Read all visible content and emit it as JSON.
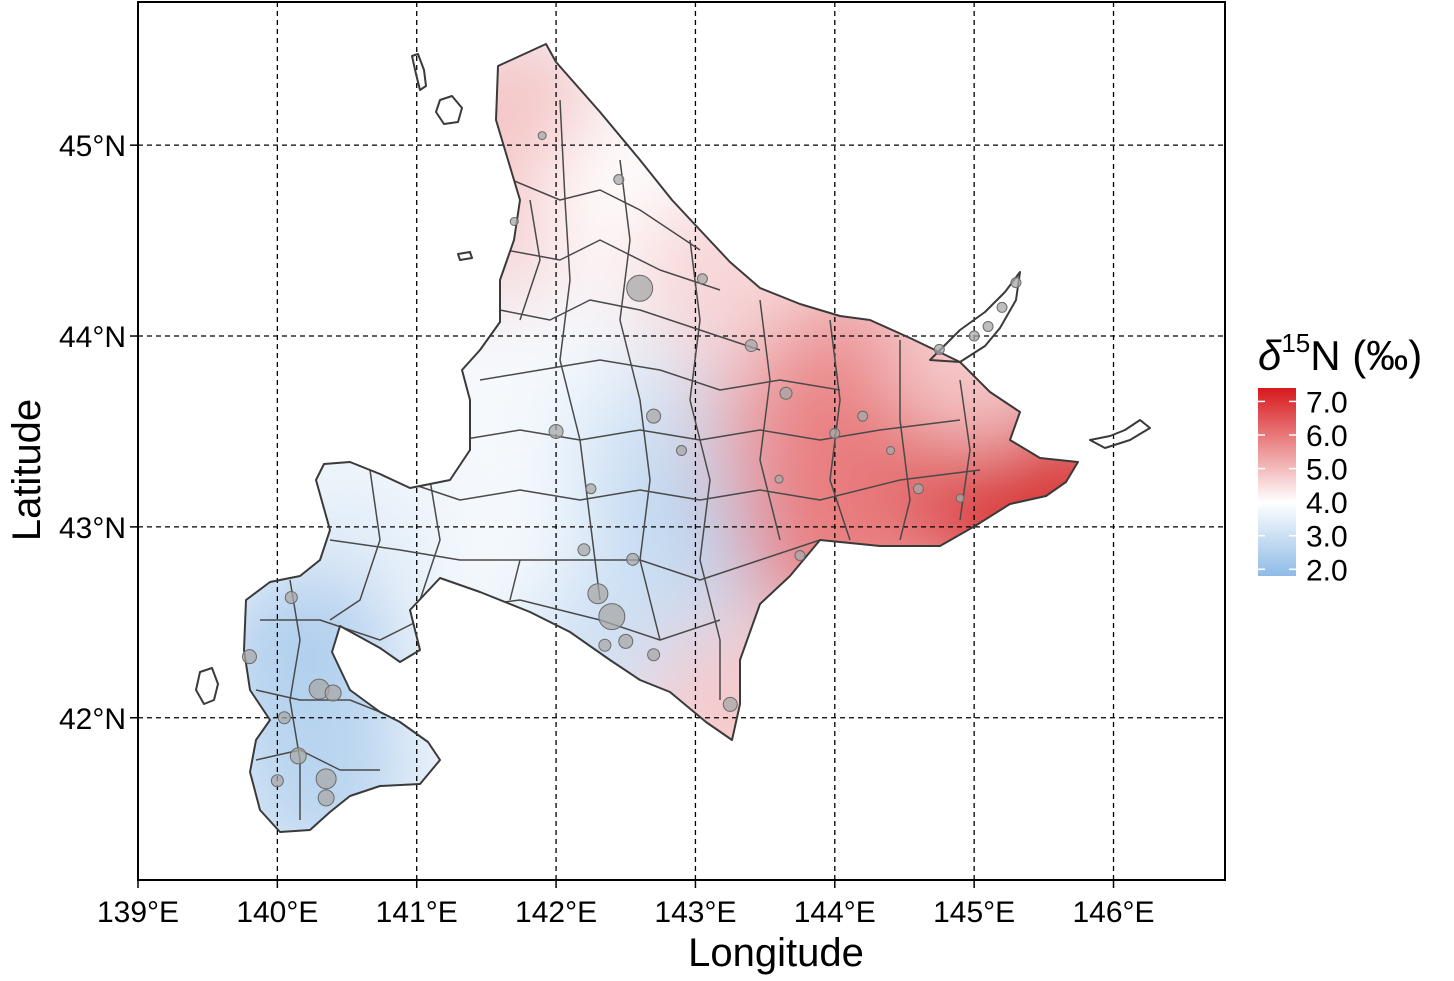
{
  "axes": {
    "xlabel": "Longitude",
    "ylabel": "Latitude",
    "x_ticks": [
      "139°E",
      "140°E",
      "141°E",
      "142°E",
      "143°E",
      "144°E",
      "145°E",
      "146°E"
    ],
    "y_ticks": [
      "45°N",
      "44°N",
      "43°N",
      "42°N"
    ],
    "x_tick_values": [
      139,
      140,
      141,
      142,
      143,
      144,
      145,
      146
    ],
    "y_tick_values": [
      45,
      44,
      43,
      42
    ],
    "xlim": [
      139.0,
      146.8
    ],
    "ylim": [
      41.15,
      45.75
    ],
    "grid": "dashed"
  },
  "legend": {
    "title_prefix": "δ",
    "title_superscript": "15",
    "title_suffix": "N (‰)",
    "placement": "right",
    "labels": [
      "7.0",
      "6.0",
      "5.0",
      "4.0",
      "3.0",
      "2.0"
    ],
    "values": [
      7.0,
      6.0,
      5.0,
      4.0,
      3.0,
      2.0
    ],
    "range": [
      1.8,
      7.4
    ],
    "colors": {
      "low": "#8fbbe6",
      "mid": "#ffffff",
      "high": "#d7191c",
      "mid_value": 4.0
    }
  },
  "chart_data": {
    "type": "heatmap",
    "description_value_units": "δ15N (‰)",
    "grid_values": [
      {
        "lon": 141.7,
        "lat": 45.1,
        "v": 4.9
      },
      {
        "lon": 141.9,
        "lat": 44.6,
        "v": 4.8
      },
      {
        "lon": 142.6,
        "lat": 44.7,
        "v": 4.0
      },
      {
        "lon": 143.2,
        "lat": 44.3,
        "v": 4.6
      },
      {
        "lon": 142.1,
        "lat": 43.8,
        "v": 3.8
      },
      {
        "lon": 142.8,
        "lat": 43.4,
        "v": 3.1
      },
      {
        "lon": 142.9,
        "lat": 42.9,
        "v": 2.7
      },
      {
        "lon": 142.4,
        "lat": 42.5,
        "v": 3.0
      },
      {
        "lon": 141.5,
        "lat": 43.0,
        "v": 3.8
      },
      {
        "lon": 140.5,
        "lat": 42.9,
        "v": 3.5
      },
      {
        "lon": 140.2,
        "lat": 42.3,
        "v": 2.4
      },
      {
        "lon": 140.3,
        "lat": 41.7,
        "v": 2.6
      },
      {
        "lon": 143.3,
        "lat": 42.0,
        "v": 4.8
      },
      {
        "lon": 143.8,
        "lat": 43.5,
        "v": 5.6
      },
      {
        "lon": 144.3,
        "lat": 43.8,
        "v": 5.8
      },
      {
        "lon": 144.5,
        "lat": 43.2,
        "v": 6.4
      },
      {
        "lon": 145.1,
        "lat": 43.2,
        "v": 7.0
      },
      {
        "lon": 145.5,
        "lat": 43.3,
        "v": 7.3
      },
      {
        "lon": 144.0,
        "lat": 42.95,
        "v": 5.9
      },
      {
        "lon": 145.0,
        "lat": 43.9,
        "v": 4.8
      }
    ],
    "sites": [
      {
        "lon": 142.0,
        "lat": 43.5,
        "r": 7
      },
      {
        "lon": 142.6,
        "lat": 44.25,
        "r": 13
      },
      {
        "lon": 142.7,
        "lat": 43.58,
        "r": 7
      },
      {
        "lon": 142.2,
        "lat": 42.88,
        "r": 6
      },
      {
        "lon": 142.3,
        "lat": 42.65,
        "r": 10
      },
      {
        "lon": 142.4,
        "lat": 42.53,
        "r": 13
      },
      {
        "lon": 142.5,
        "lat": 42.4,
        "r": 7
      },
      {
        "lon": 142.35,
        "lat": 42.38,
        "r": 6
      },
      {
        "lon": 142.7,
        "lat": 42.33,
        "r": 6
      },
      {
        "lon": 142.55,
        "lat": 42.83,
        "r": 6
      },
      {
        "lon": 143.25,
        "lat": 42.07,
        "r": 7
      },
      {
        "lon": 143.4,
        "lat": 43.95,
        "r": 6
      },
      {
        "lon": 143.65,
        "lat": 43.7,
        "r": 6
      },
      {
        "lon": 144.0,
        "lat": 43.49,
        "r": 5
      },
      {
        "lon": 144.6,
        "lat": 43.2,
        "r": 5
      },
      {
        "lon": 144.2,
        "lat": 43.58,
        "r": 5
      },
      {
        "lon": 140.1,
        "lat": 42.63,
        "r": 6
      },
      {
        "lon": 139.8,
        "lat": 42.32,
        "r": 7
      },
      {
        "lon": 140.3,
        "lat": 42.15,
        "r": 10
      },
      {
        "lon": 140.4,
        "lat": 42.13,
        "r": 8
      },
      {
        "lon": 140.05,
        "lat": 42.0,
        "r": 6
      },
      {
        "lon": 140.15,
        "lat": 41.8,
        "r": 8
      },
      {
        "lon": 140.35,
        "lat": 41.68,
        "r": 10
      },
      {
        "lon": 140.35,
        "lat": 41.58,
        "r": 8
      },
      {
        "lon": 140.0,
        "lat": 41.67,
        "r": 6
      },
      {
        "lon": 145.0,
        "lat": 44.0,
        "r": 5
      },
      {
        "lon": 145.1,
        "lat": 44.05,
        "r": 5
      },
      {
        "lon": 145.2,
        "lat": 44.15,
        "r": 5
      },
      {
        "lon": 145.3,
        "lat": 44.28,
        "r": 5
      },
      {
        "lon": 144.75,
        "lat": 43.93,
        "r": 5
      },
      {
        "lon": 143.05,
        "lat": 44.3,
        "r": 5
      },
      {
        "lon": 142.45,
        "lat": 44.82,
        "r": 5
      },
      {
        "lon": 141.9,
        "lat": 45.05,
        "r": 4
      },
      {
        "lon": 141.7,
        "lat": 44.6,
        "r": 4
      },
      {
        "lon": 142.9,
        "lat": 43.4,
        "r": 5
      },
      {
        "lon": 142.25,
        "lat": 43.2,
        "r": 5
      },
      {
        "lon": 143.6,
        "lat": 43.25,
        "r": 4
      },
      {
        "lon": 144.4,
        "lat": 43.4,
        "r": 4
      },
      {
        "lon": 144.9,
        "lat": 43.15,
        "r": 4
      },
      {
        "lon": 143.75,
        "lat": 42.85,
        "r": 5
      }
    ]
  }
}
